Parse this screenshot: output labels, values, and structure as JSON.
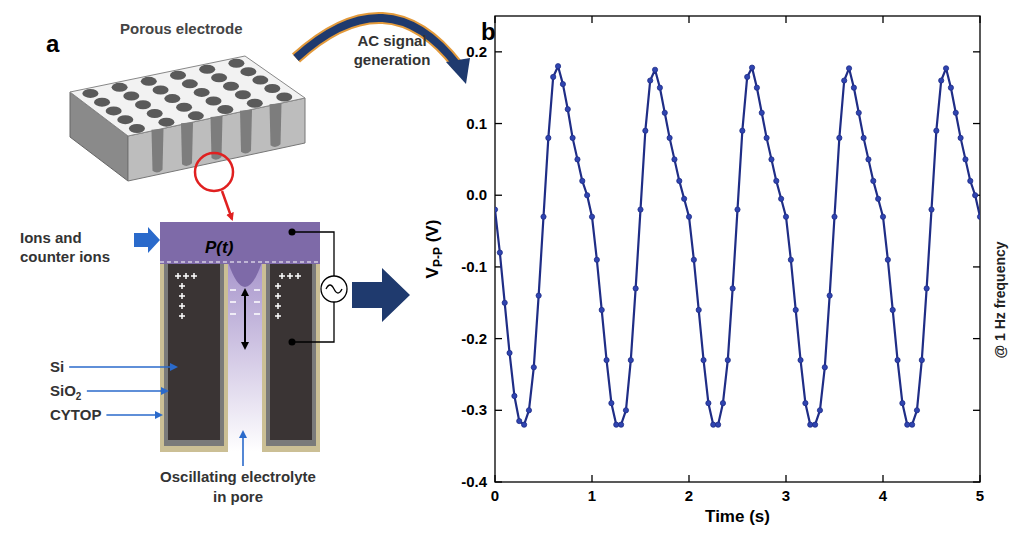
{
  "chart_data": {
    "type": "line",
    "panel_label": "b",
    "xlabel": "Time (s)",
    "ylabel_parts": [
      {
        "text": "V"
      },
      {
        "text": "P-P",
        "sub": true
      },
      {
        "text": " (V)"
      }
    ],
    "annotation": "@ 1 Hz frequency",
    "color": "#1f2d86",
    "marker": "circle",
    "xlim": [
      0,
      5
    ],
    "xticks": [
      0,
      1,
      2,
      3,
      4,
      5
    ],
    "ylim": [
      -0.4,
      0.25
    ],
    "yticks": [
      -0.4,
      -0.3,
      -0.2,
      -0.1,
      {
        "value": 0,
        "label": "0.0"
      },
      0.1,
      0.2
    ],
    "x": [
      0,
      0.05,
      0.1,
      0.15,
      0.2,
      0.25,
      0.3,
      0.35,
      0.4,
      0.45,
      0.5,
      0.55,
      0.6,
      0.65,
      0.7,
      0.75,
      0.8,
      0.85,
      0.9,
      0.95,
      1,
      1.05,
      1.1,
      1.15,
      1.2,
      1.25,
      1.3,
      1.35,
      1.4,
      1.45,
      1.5,
      1.55,
      1.6,
      1.65,
      1.7,
      1.75,
      1.8,
      1.85,
      1.9,
      1.95,
      2,
      2.05,
      2.1,
      2.15,
      2.2,
      2.25,
      2.3,
      2.35,
      2.4,
      2.45,
      2.5,
      2.55,
      2.6,
      2.65,
      2.7,
      2.75,
      2.8,
      2.85,
      2.9,
      2.95,
      3,
      3.05,
      3.1,
      3.15,
      3.2,
      3.25,
      3.3,
      3.35,
      3.4,
      3.45,
      3.5,
      3.55,
      3.6,
      3.65,
      3.7,
      3.75,
      3.8,
      3.85,
      3.9,
      3.95,
      4,
      4.05,
      4.1,
      4.15,
      4.2,
      4.25,
      4.3,
      4.35,
      4.4,
      4.45,
      4.5,
      4.55,
      4.6,
      4.65,
      4.7,
      4.75,
      4.8,
      4.85,
      4.9,
      4.95,
      5
    ],
    "values": [
      -0.02,
      -0.08,
      -0.15,
      -0.22,
      -0.28,
      -0.315,
      -0.32,
      -0.3,
      -0.24,
      -0.14,
      -0.03,
      0.08,
      0.165,
      0.18,
      0.155,
      0.12,
      0.08,
      0.05,
      0.02,
      0.0,
      -0.03,
      -0.09,
      -0.16,
      -0.23,
      -0.29,
      -0.32,
      -0.32,
      -0.3,
      -0.23,
      -0.13,
      -0.02,
      0.09,
      0.16,
      0.175,
      0.15,
      0.115,
      0.08,
      0.05,
      0.02,
      -0.005,
      -0.03,
      -0.09,
      -0.16,
      -0.23,
      -0.29,
      -0.32,
      -0.32,
      -0.29,
      -0.23,
      -0.13,
      -0.02,
      0.09,
      0.165,
      0.178,
      0.15,
      0.115,
      0.08,
      0.05,
      0.02,
      -0.005,
      -0.03,
      -0.09,
      -0.16,
      -0.23,
      -0.29,
      -0.32,
      -0.32,
      -0.3,
      -0.24,
      -0.14,
      -0.03,
      0.08,
      0.16,
      0.177,
      0.15,
      0.115,
      0.08,
      0.05,
      0.02,
      -0.005,
      -0.03,
      -0.09,
      -0.16,
      -0.23,
      -0.29,
      -0.32,
      -0.32,
      -0.3,
      -0.23,
      -0.13,
      -0.02,
      0.09,
      0.16,
      0.177,
      0.15,
      0.115,
      0.08,
      0.05,
      0.02,
      0.0,
      -0.03
    ]
  },
  "diagram": {
    "panel_label": "a",
    "title": "Porous electrode",
    "arrow_label": [
      "AC signal",
      "generation"
    ],
    "pressure_label": "P(t)",
    "inlet_label": [
      "Ions and",
      "counter ions"
    ],
    "layers": [
      {
        "text": "Si"
      },
      {
        "text": "SiO",
        "sub": "2"
      },
      {
        "text": "CYTOP"
      }
    ],
    "pore_label": [
      "Oscillating electrolyte",
      "in pore"
    ]
  }
}
